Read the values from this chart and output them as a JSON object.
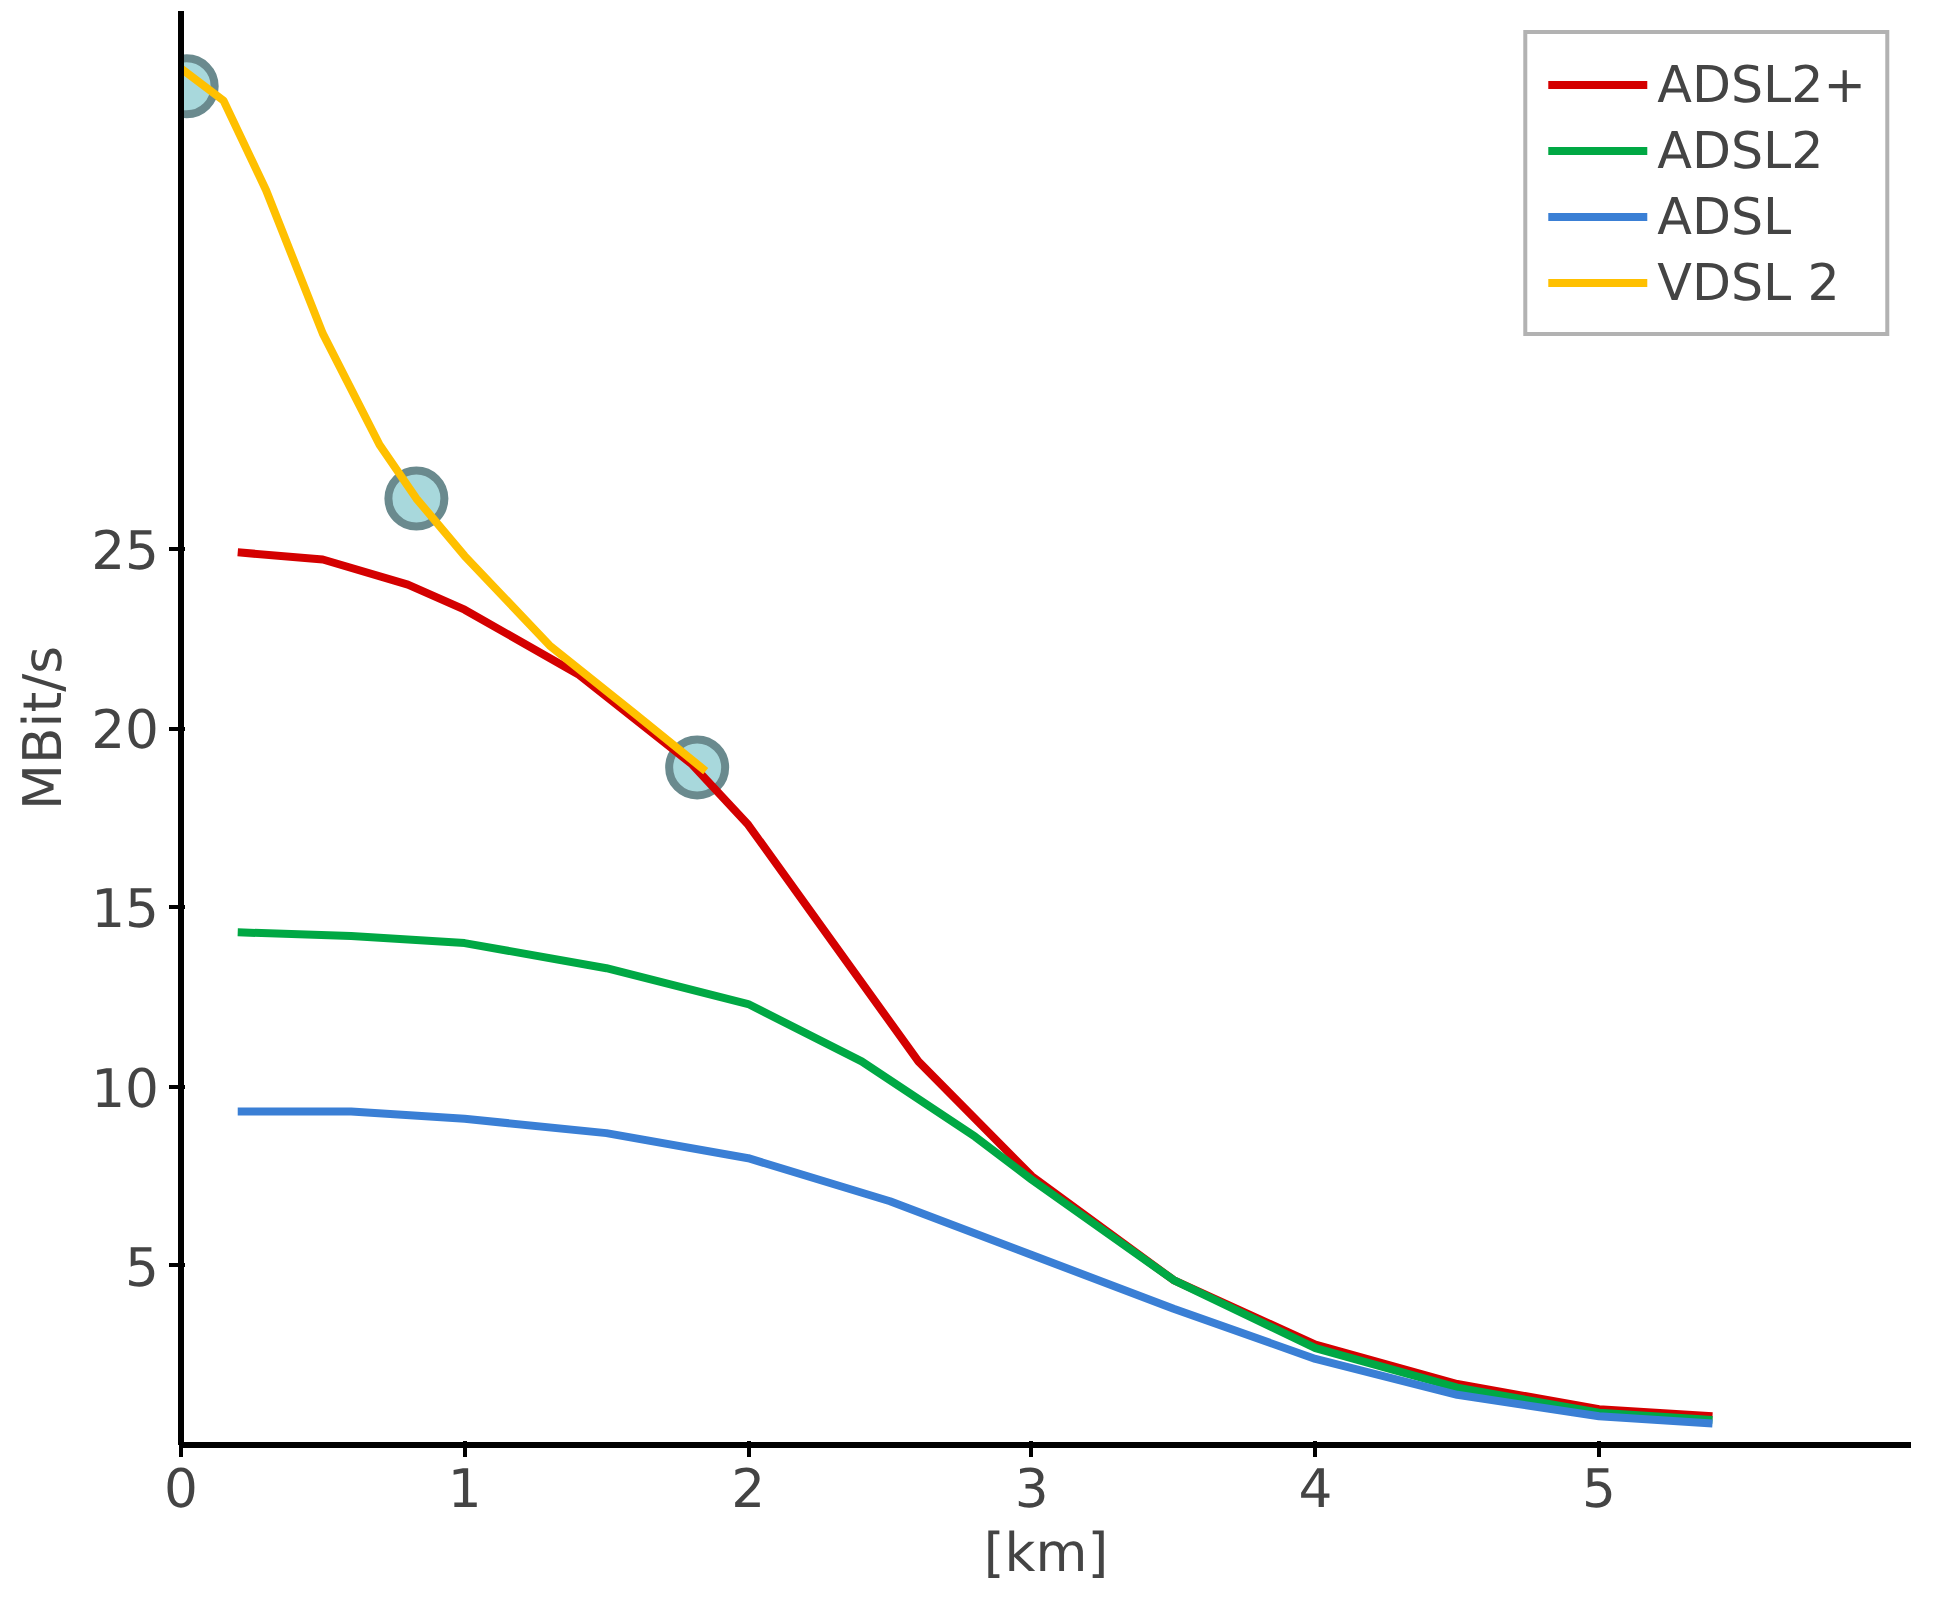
{
  "chart_data": {
    "type": "line",
    "xlabel": "[km]",
    "ylabel": "MBit/s",
    "xlim": [
      0,
      6.1
    ],
    "ylim": [
      0,
      40
    ],
    "xticks": [
      0,
      1,
      2,
      3,
      4,
      5
    ],
    "yticks": [
      5,
      10,
      15,
      20,
      25
    ],
    "grid": false,
    "legend": "top right",
    "line_style": "solid",
    "series": [
      {
        "name": "ADSL2+",
        "color": "#d40000",
        "x": [
          0.2,
          0.5,
          0.8,
          1.0,
          1.4,
          1.8,
          2.0,
          2.3,
          2.6,
          3.0,
          3.5,
          4.0,
          4.5,
          5.0,
          5.4
        ],
        "values": [
          24.9,
          24.7,
          24.0,
          23.3,
          21.5,
          19.0,
          17.3,
          14.0,
          10.7,
          7.5,
          4.6,
          2.8,
          1.7,
          1.0,
          0.8
        ]
      },
      {
        "name": "ADSL2",
        "color": "#00a844",
        "x": [
          0.2,
          0.6,
          1.0,
          1.5,
          2.0,
          2.4,
          2.8,
          3.0,
          3.5,
          4.0,
          4.5,
          5.0,
          5.4
        ],
        "values": [
          14.3,
          14.2,
          14.0,
          13.3,
          12.3,
          10.7,
          8.6,
          7.4,
          4.6,
          2.7,
          1.6,
          0.9,
          0.7
        ]
      },
      {
        "name": "ADSL",
        "color": "#3a7fd5",
        "x": [
          0.2,
          0.6,
          1.0,
          1.5,
          2.0,
          2.5,
          3.0,
          3.5,
          4.0,
          4.5,
          5.0,
          5.4
        ],
        "values": [
          9.3,
          9.3,
          9.1,
          8.7,
          8.0,
          6.8,
          5.3,
          3.8,
          2.4,
          1.4,
          0.8,
          0.6
        ]
      },
      {
        "name": "VDSL 2",
        "color": "#ffc000",
        "x": [
          0.0,
          0.15,
          0.3,
          0.5,
          0.7,
          0.83,
          1.0,
          1.3,
          1.6,
          1.85
        ],
        "values": [
          38.4,
          37.5,
          35.0,
          31.0,
          27.9,
          26.4,
          24.8,
          22.3,
          20.4,
          18.8
        ]
      },
      {
        "type": "scatter",
        "marker": "circle",
        "color": "#a8d8dc",
        "x": [
          0.02,
          0.83,
          1.82
        ],
        "values": [
          37.9,
          26.4,
          18.9
        ]
      }
    ]
  }
}
